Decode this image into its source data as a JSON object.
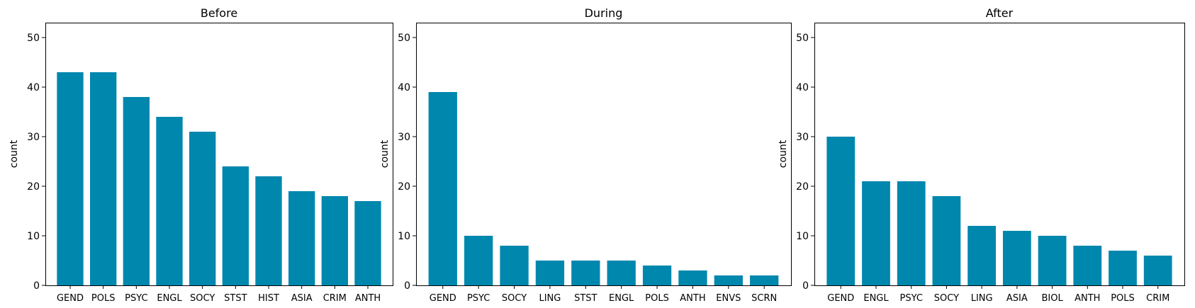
{
  "figure": {
    "bar_color": "#0087ae"
  },
  "chart_data": [
    {
      "type": "bar",
      "title": "Before",
      "xlabel": "",
      "ylabel": "count",
      "ylim": [
        0,
        53
      ],
      "yticks": [
        0,
        10,
        20,
        30,
        40,
        50
      ],
      "categories": [
        "GEND",
        "POLS",
        "PSYC",
        "ENGL",
        "SOCY",
        "STST",
        "HIST",
        "ASIA",
        "CRIM",
        "ANTH"
      ],
      "values": [
        43,
        43,
        38,
        34,
        31,
        24,
        22,
        19,
        18,
        17
      ]
    },
    {
      "type": "bar",
      "title": "During",
      "xlabel": "",
      "ylabel": "count",
      "ylim": [
        0,
        53
      ],
      "yticks": [
        0,
        10,
        20,
        30,
        40,
        50
      ],
      "categories": [
        "GEND",
        "PSYC",
        "SOCY",
        "LING",
        "STST",
        "ENGL",
        "POLS",
        "ANTH",
        "ENVS",
        "SCRN"
      ],
      "values": [
        39,
        10,
        8,
        5,
        5,
        5,
        4,
        3,
        2,
        2
      ]
    },
    {
      "type": "bar",
      "title": "After",
      "xlabel": "",
      "ylabel": "count",
      "ylim": [
        0,
        53
      ],
      "yticks": [
        0,
        10,
        20,
        30,
        40,
        50
      ],
      "categories": [
        "GEND",
        "ENGL",
        "PSYC",
        "SOCY",
        "LING",
        "ASIA",
        "BIOL",
        "ANTH",
        "POLS",
        "CRIM"
      ],
      "values": [
        30,
        21,
        21,
        18,
        12,
        11,
        10,
        8,
        7,
        6
      ]
    }
  ]
}
